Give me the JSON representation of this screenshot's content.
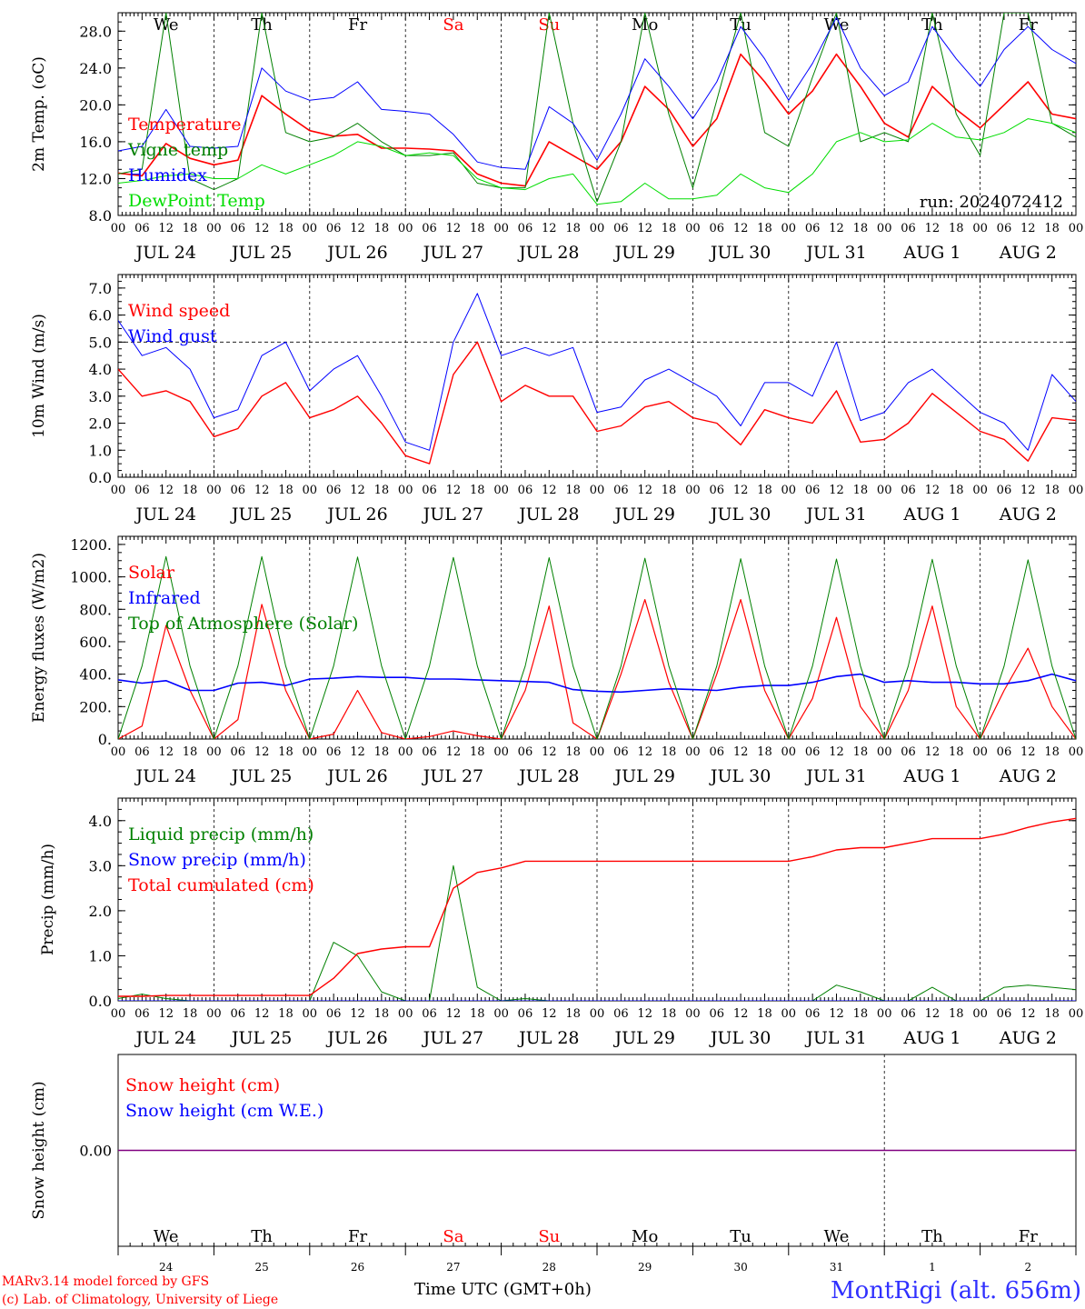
{
  "days": [
    {
      "abbr": "We",
      "date": "JUL 24",
      "num": "24",
      "weekend": false
    },
    {
      "abbr": "Th",
      "date": "JUL 25",
      "num": "25",
      "weekend": false
    },
    {
      "abbr": "Fr",
      "date": "JUL 26",
      "num": "26",
      "weekend": false
    },
    {
      "abbr": "Sa",
      "date": "JUL 27",
      "num": "27",
      "weekend": true
    },
    {
      "abbr": "Su",
      "date": "JUL 28",
      "num": "28",
      "weekend": true
    },
    {
      "abbr": "Mo",
      "date": "JUL 29",
      "num": "29",
      "weekend": false
    },
    {
      "abbr": "Tu",
      "date": "JUL 30",
      "num": "30",
      "weekend": false
    },
    {
      "abbr": "We",
      "date": "JUL 31",
      "num": "31",
      "weekend": false
    },
    {
      "abbr": "Th",
      "date": "AUG  1",
      "num": "1",
      "weekend": false
    },
    {
      "abbr": "Fr",
      "date": "AUG  2",
      "num": "2",
      "weekend": false
    }
  ],
  "hour_ticks": [
    "00",
    "06",
    "12",
    "18"
  ],
  "colors": {
    "red": "#ff0000",
    "green": "#008000",
    "blue": "#0000ff",
    "lime": "#00dd00",
    "purple": "#800080",
    "site": "#3030ff"
  },
  "footer": {
    "model": "MARv3.14 model forced by GFS",
    "lab": "(c) Lab. of Climatology, University of Liege",
    "time_axis": "Time UTC (GMT+0h)",
    "site": "MontRigi (alt. 656m)"
  },
  "chart_data": [
    {
      "type": "line",
      "ylabel": "2m Temp. (oC)",
      "ylim": [
        8,
        30
      ],
      "yticks": [
        "8.0",
        "12.0",
        "16.0",
        "20.0",
        "24.0",
        "28.0"
      ],
      "ytick_values": [
        8,
        12,
        16,
        20,
        24,
        28
      ],
      "annotation": "run: 2024072412",
      "x_unit": "hours since 2024-07-24 00 UTC, 6-hourly",
      "series": [
        {
          "name": "Temperature",
          "color": "#ff0000",
          "width": 1.6,
          "values": [
            12.6,
            12.3,
            15.8,
            14.2,
            13.5,
            14.0,
            21.0,
            19.0,
            17.2,
            16.6,
            16.8,
            15.3,
            15.3,
            15.2,
            15.0,
            12.5,
            11.5,
            11.2,
            16.0,
            14.5,
            13.0,
            16.0,
            22.0,
            19.5,
            15.5,
            18.5,
            25.5,
            22.5,
            19.0,
            21.5,
            25.5,
            22.0,
            18.0,
            16.5,
            22.0,
            19.5,
            17.5,
            20.0,
            22.5,
            19.0,
            18.5
          ]
        },
        {
          "name": "Vigne temp",
          "color": "#008000",
          "width": 1.0,
          "values": [
            12.5,
            13.0,
            30.0,
            12.0,
            10.8,
            12.0,
            30.0,
            17.0,
            16.0,
            16.5,
            18.0,
            16.0,
            14.5,
            14.5,
            14.8,
            11.5,
            11.0,
            11.0,
            30.0,
            18.0,
            9.5,
            16.0,
            30.0,
            19.0,
            11.0,
            20.5,
            30.0,
            17.0,
            15.5,
            23.0,
            30.0,
            16.0,
            17.0,
            16.0,
            30.0,
            19.0,
            14.5,
            30.0,
            30.0,
            18.0,
            16.5
          ]
        },
        {
          "name": "Humidex",
          "color": "#0000ff",
          "width": 1.0,
          "values": [
            15.0,
            15.5,
            19.5,
            15.5,
            15.3,
            15.5,
            24.0,
            21.5,
            20.5,
            20.8,
            22.5,
            19.5,
            19.3,
            19.0,
            16.8,
            13.8,
            13.2,
            13.0,
            19.8,
            18.0,
            14.0,
            19.0,
            25.0,
            22.0,
            18.5,
            22.5,
            28.5,
            25.0,
            20.5,
            24.5,
            29.5,
            24.0,
            21.0,
            22.5,
            28.5,
            25.0,
            22.0,
            26.0,
            28.5,
            26.0,
            24.5
          ]
        },
        {
          "name": "DewPoint Temp",
          "color": "#00dd00",
          "width": 1.0,
          "values": [
            11.5,
            11.8,
            12.3,
            12.5,
            12.0,
            12.0,
            13.5,
            12.5,
            13.5,
            14.5,
            16.0,
            15.5,
            14.5,
            14.8,
            14.5,
            12.0,
            11.0,
            10.8,
            12.0,
            12.5,
            9.2,
            9.5,
            11.5,
            9.8,
            9.8,
            10.2,
            12.5,
            11.0,
            10.5,
            12.5,
            16.0,
            17.0,
            16.0,
            16.2,
            18.0,
            16.5,
            16.2,
            17.0,
            18.5,
            18.0,
            17.0
          ]
        }
      ]
    },
    {
      "type": "line",
      "ylabel": "10m Wind (m/s)",
      "ylim": [
        0,
        7.5
      ],
      "yticks": [
        "0.0",
        "1.0",
        "2.0",
        "3.0",
        "4.0",
        "5.0",
        "6.0",
        "7.0"
      ],
      "ytick_values": [
        0,
        1,
        2,
        3,
        4,
        5,
        6,
        7
      ],
      "threshold": 5.0,
      "x_unit": "hours since 2024-07-24 00 UTC, 6-hourly",
      "series": [
        {
          "name": "Wind speed",
          "color": "#ff0000",
          "width": 1.4,
          "values": [
            4.0,
            3.0,
            3.2,
            2.8,
            1.5,
            1.8,
            3.0,
            3.5,
            2.2,
            2.5,
            3.0,
            2.0,
            0.8,
            0.5,
            3.8,
            5.0,
            2.8,
            3.4,
            3.0,
            3.0,
            1.7,
            1.9,
            2.6,
            2.8,
            2.2,
            2.0,
            1.2,
            2.5,
            2.2,
            2.0,
            3.2,
            1.3,
            1.4,
            2.0,
            3.1,
            2.4,
            1.7,
            1.4,
            0.6,
            2.2,
            2.1
          ]
        },
        {
          "name": "Wind gust",
          "color": "#0000ff",
          "width": 1.0,
          "values": [
            5.8,
            4.5,
            4.8,
            4.0,
            2.2,
            2.5,
            4.5,
            5.0,
            3.2,
            4.0,
            4.5,
            3.0,
            1.3,
            1.0,
            5.0,
            6.8,
            4.5,
            4.8,
            4.5,
            4.8,
            2.4,
            2.6,
            3.6,
            4.0,
            3.5,
            3.0,
            1.9,
            3.5,
            3.5,
            3.0,
            5.0,
            2.1,
            2.4,
            3.5,
            4.0,
            3.2,
            2.4,
            2.0,
            1.0,
            3.8,
            2.8
          ]
        }
      ]
    },
    {
      "type": "line",
      "ylabel": "Energy fluxes (W/m2)",
      "ylim": [
        0,
        1250
      ],
      "yticks": [
        "0.",
        "200.",
        "400.",
        "600.",
        "800.",
        "1000.",
        "1200."
      ],
      "ytick_values": [
        0,
        200,
        400,
        600,
        800,
        1000,
        1200
      ],
      "x_unit": "hours since 2024-07-24 00 UTC, 6-hourly",
      "series": [
        {
          "name": "Solar",
          "color": "#ff0000",
          "width": 1.2,
          "values": [
            0,
            80,
            700,
            300,
            0,
            120,
            830,
            300,
            0,
            30,
            300,
            40,
            0,
            15,
            50,
            20,
            0,
            300,
            820,
            100,
            0,
            400,
            860,
            350,
            0,
            400,
            860,
            300,
            0,
            250,
            750,
            200,
            0,
            300,
            820,
            200,
            0,
            300,
            560,
            200,
            0
          ]
        },
        {
          "name": "Infrared",
          "color": "#0000ff",
          "width": 1.6,
          "values": [
            365,
            345,
            360,
            300,
            300,
            345,
            350,
            330,
            370,
            375,
            385,
            380,
            380,
            370,
            370,
            365,
            360,
            355,
            350,
            305,
            295,
            290,
            300,
            310,
            305,
            300,
            320,
            330,
            330,
            350,
            385,
            400,
            350,
            360,
            350,
            350,
            340,
            340,
            360,
            400,
            360
          ]
        },
        {
          "name": "Top of Atmosphere (Solar)",
          "color": "#008000",
          "width": 1.0,
          "values": [
            0,
            450,
            1125,
            450,
            0,
            450,
            1125,
            450,
            0,
            450,
            1122,
            450,
            0,
            450,
            1120,
            450,
            0,
            450,
            1118,
            450,
            0,
            450,
            1115,
            450,
            0,
            450,
            1112,
            450,
            0,
            450,
            1110,
            450,
            0,
            450,
            1108,
            450,
            0,
            450,
            1105,
            450,
            0
          ]
        }
      ]
    },
    {
      "type": "line",
      "ylabel": "Precip (mm/h)",
      "ylim": [
        0,
        4.5
      ],
      "yticks": [
        "0.0",
        "1.0",
        "2.0",
        "3.0",
        "4.0"
      ],
      "ytick_values": [
        0,
        1,
        2,
        3,
        4
      ],
      "x_unit": "hours since 2024-07-24 00 UTC, 6-hourly",
      "series": [
        {
          "name": "Liquid precip (mm/h)",
          "color": "#008000",
          "width": 1.0,
          "values": [
            0.05,
            0.15,
            0.05,
            0,
            0,
            0,
            0,
            0,
            0,
            1.3,
            1.0,
            0.2,
            0,
            0,
            3.0,
            0.3,
            0,
            0.05,
            0,
            0,
            0,
            0,
            0,
            0,
            0,
            0,
            0,
            0,
            0,
            0,
            0.35,
            0.2,
            0,
            0,
            0.3,
            0,
            0,
            0.3,
            0.35,
            0.3,
            0.25
          ]
        },
        {
          "name": "Snow precip (mm/h)",
          "color": "#0000ff",
          "width": 1.0,
          "values": [
            0,
            0,
            0,
            0,
            0,
            0,
            0,
            0,
            0,
            0,
            0,
            0,
            0,
            0,
            0,
            0,
            0,
            0,
            0,
            0,
            0,
            0,
            0,
            0,
            0,
            0,
            0,
            0,
            0,
            0,
            0,
            0,
            0,
            0,
            0,
            0,
            0,
            0,
            0,
            0,
            0
          ]
        },
        {
          "name": "Total cumulated (cm)",
          "color": "#ff0000",
          "width": 1.4,
          "values": [
            0.1,
            0.1,
            0.12,
            0.12,
            0.12,
            0.12,
            0.12,
            0.12,
            0.12,
            0.5,
            1.05,
            1.15,
            1.2,
            1.2,
            2.5,
            2.85,
            2.95,
            3.1,
            3.1,
            3.1,
            3.1,
            3.1,
            3.1,
            3.1,
            3.1,
            3.1,
            3.1,
            3.1,
            3.1,
            3.2,
            3.35,
            3.4,
            3.4,
            3.5,
            3.6,
            3.6,
            3.6,
            3.7,
            3.85,
            3.97,
            4.05
          ]
        }
      ]
    },
    {
      "type": "line",
      "ylabel": "Snow height (cm)",
      "ylim": [
        -1,
        1
      ],
      "yticks": [
        "0.00"
      ],
      "ytick_values": [
        0
      ],
      "x_unit": "hours since 2024-07-24 00 UTC, 6-hourly",
      "series": [
        {
          "name": "Snow height (cm)",
          "color": "#ff0000",
          "width": 1.0,
          "values": [
            0,
            0
          ]
        },
        {
          "name": "Snow height (cm W.E.)",
          "color": "#0000ff",
          "width": 1.0,
          "values": [
            0,
            0
          ]
        }
      ]
    }
  ]
}
